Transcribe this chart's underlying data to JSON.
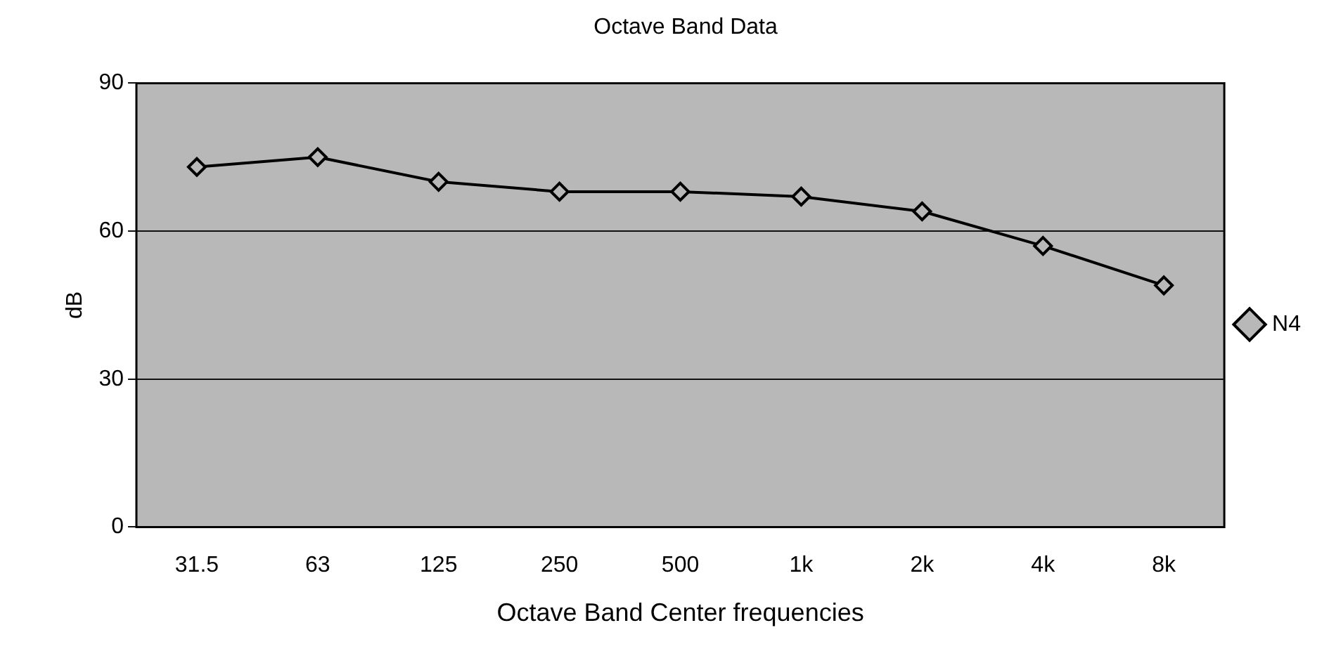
{
  "chart_data": {
    "type": "line",
    "title": "Octave Band Data",
    "xlabel": "Octave Band Center frequencies",
    "ylabel": "dB",
    "categories": [
      "31.5",
      "63",
      "125",
      "250",
      "500",
      "1k",
      "2k",
      "4k",
      "8k"
    ],
    "series": [
      {
        "name": "N4",
        "color": "#000000",
        "values": [
          73,
          75,
          70,
          68,
          68,
          67,
          64,
          57,
          49
        ]
      }
    ],
    "ylim": [
      0,
      90
    ],
    "yticks": [
      0,
      30,
      60,
      90
    ],
    "grid": "y",
    "legend": "right",
    "marker": "diamond",
    "line_style": "solid"
  }
}
